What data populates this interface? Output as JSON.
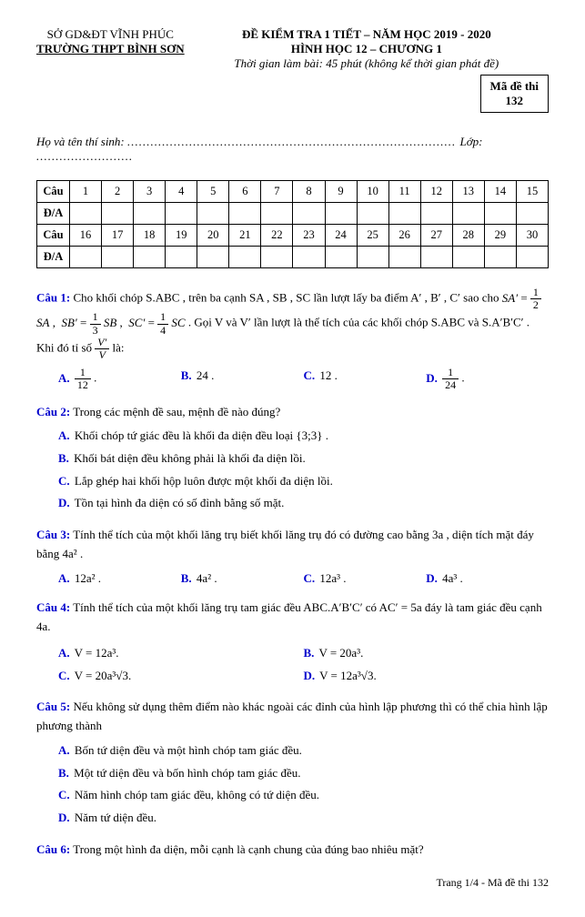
{
  "header": {
    "dept": "SỞ GD&ĐT VĨNH PHÚC",
    "school": "TRƯỜNG THPT BÌNH SƠN",
    "exam_title": "ĐỀ KIỂM TRA 1 TIẾT – NĂM HỌC 2019 - 2020",
    "subject": "HÌNH HỌC 12 – CHƯƠNG 1",
    "time_note": "Thời gian làm bài: 45 phút (không kể thời gian phát đề)",
    "code_label": "Mã đề thi",
    "code": "132",
    "student_label": "Họ và tên thí sinh:",
    "class_label": "Lớp:"
  },
  "grid": {
    "row_label_q": "Câu",
    "row_label_a": "Đ/A",
    "nums1": [
      "1",
      "2",
      "3",
      "4",
      "5",
      "6",
      "7",
      "8",
      "9",
      "10",
      "11",
      "12",
      "13",
      "14",
      "15"
    ],
    "nums2": [
      "16",
      "17",
      "18",
      "19",
      "20",
      "21",
      "22",
      "23",
      "24",
      "25",
      "26",
      "27",
      "28",
      "29",
      "30"
    ]
  },
  "q1": {
    "label": "Câu 1:",
    "text1": " Cho khối chóp S.ABC , trên ba cạnh SA , SB , SC lần lượt lấy ba điểm A′ , B′ , C′ sao cho ",
    "text2": ". Gọi V và V′ lần lượt là thể tích của các khối chóp S.ABC và S.A′B′C′ . Khi đó tỉ số ",
    "text3": " là:",
    "optA": ".",
    "optB": "24 .",
    "optC": "12 .",
    "optD": "."
  },
  "q2": {
    "label": "Câu 2:",
    "text": " Trong các mệnh đề sau, mệnh đề nào đúng?",
    "A": "Khối chóp tứ giác đều là khối đa diện đều loại {3;3} .",
    "B": "Khối bát diện đều không phải là khối đa diện lồi.",
    "C": "Lắp ghép hai khối hộp luôn được một khối đa diện lồi.",
    "D": "Tồn tại hình đa diện có số đỉnh bằng số mặt."
  },
  "q3": {
    "label": "Câu 3:",
    "text": " Tính thể tích của một khối lăng trụ biết khối lăng trụ đó có đường cao bằng 3a , diện tích mặt đáy bằng 4a² .",
    "A": "12a² .",
    "B": "4a² .",
    "C": "12a³ .",
    "D": "4a³ ."
  },
  "q4": {
    "label": "Câu 4:",
    "text": " Tính thể tích của một khối lăng trụ tam giác đều ABC.A′B′C′ có AC′ = 5a đáy là tam giác đều cạnh 4a.",
    "A": "V = 12a³.",
    "B": "V = 20a³.",
    "C": "V = 20a³√3.",
    "D": "V = 12a³√3."
  },
  "q5": {
    "label": "Câu 5:",
    "text": " Nếu không sử dụng thêm điểm nào khác ngoài các đỉnh của hình lập phương thì có thể chia hình lập phương thành",
    "A": "Bốn tứ diện đều và một hình chóp tam giác đều.",
    "B": "Một tứ diện đều và bốn hình chóp tam giác đều.",
    "C": "Năm hình chóp tam giác đều, không có tứ diện đều.",
    "D": "Năm tứ diện đều."
  },
  "q6": {
    "label": "Câu 6:",
    "text": " Trong một hình đa diện, mỗi cạnh là cạnh chung của đúng bao nhiêu mặt?"
  },
  "footer": "Trang 1/4 - Mã đề thi 132"
}
